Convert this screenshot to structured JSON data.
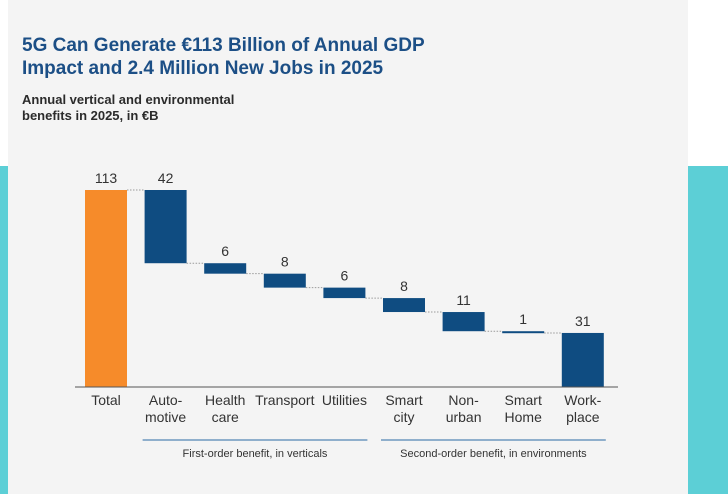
{
  "title_line1": "5G Can Generate €113 Billion of Annual GDP",
  "title_line2": "Impact and 2.4 Million New Jobs in 2025",
  "subtitle_line1": "Annual vertical and environmental",
  "subtitle_line2": "benefits in 2025, in €B",
  "colors": {
    "total": "#f68b2a",
    "step": "#0f4c81",
    "accent_band": "#5ccfd6",
    "title": "#1c4f86"
  },
  "chart_data": {
    "type": "bar",
    "subtype": "waterfall",
    "categories": [
      [
        "Total"
      ],
      [
        "Auto-",
        "motive"
      ],
      [
        "Health",
        "care"
      ],
      [
        "Transport"
      ],
      [
        "Utilities"
      ],
      [
        "Smart",
        "city"
      ],
      [
        "Non-",
        "urban"
      ],
      [
        "Smart",
        "Home"
      ],
      [
        "Work-",
        "place"
      ]
    ],
    "values": [
      113,
      42,
      6,
      8,
      6,
      8,
      11,
      1,
      31
    ],
    "value_labels": [
      "113",
      "42",
      "6",
      "8",
      "6",
      "8",
      "11",
      "1",
      "31"
    ],
    "total_index": 0,
    "ylim": [
      0,
      113
    ],
    "groups": [
      {
        "label": "First-order benefit, in verticals",
        "from": 1,
        "to": 4
      },
      {
        "label": "Second-order benefit, in environments",
        "from": 5,
        "to": 8
      }
    ]
  }
}
